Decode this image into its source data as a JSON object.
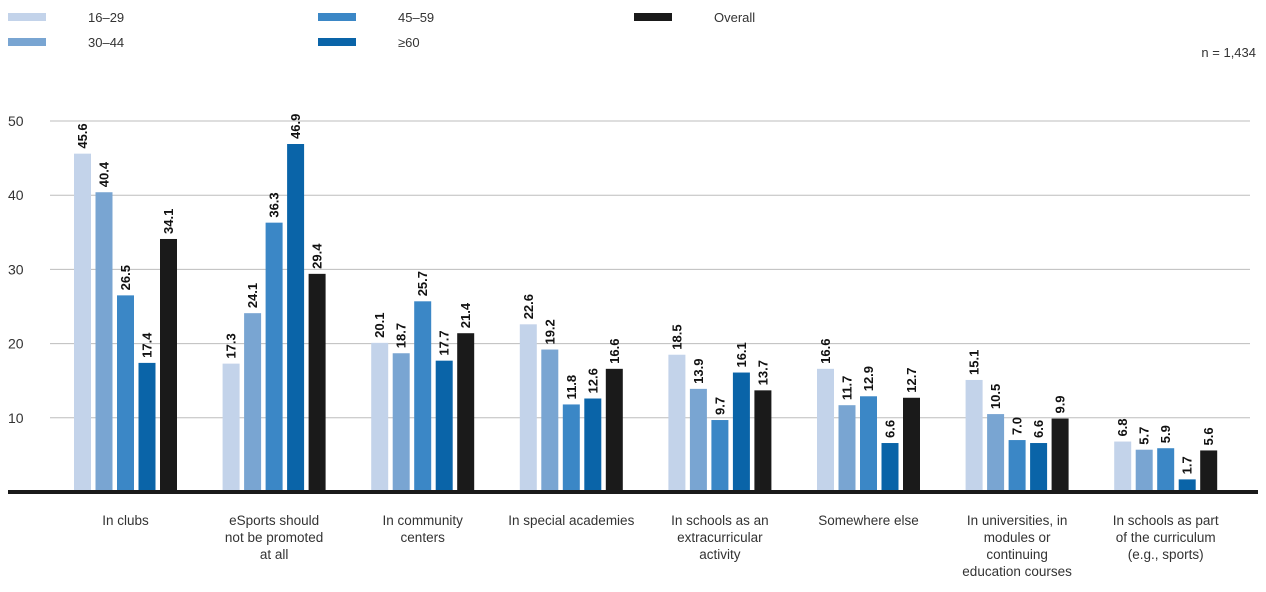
{
  "note": "n = 1,434",
  "chart_data": {
    "type": "bar",
    "title": "",
    "xlabel": "",
    "ylabel": "",
    "ylim": [
      0,
      50
    ],
    "yticks": [
      10,
      20,
      30,
      40,
      50
    ],
    "grid": true,
    "legend_position": "top-left",
    "categories": [
      [
        "In clubs"
      ],
      [
        "eSports should",
        "not be promoted",
        "at all"
      ],
      [
        "In community",
        "centers"
      ],
      [
        "In special academies"
      ],
      [
        "In schools as an",
        "extracurricular",
        "activity"
      ],
      [
        "Somewhere else"
      ],
      [
        "In universities, in",
        "modules or",
        "continuing",
        "education courses"
      ],
      [
        "In schools as part",
        "of the curriculum",
        "(e.g., sports)"
      ]
    ],
    "series": [
      {
        "name": "16–29",
        "color": "#c3d3ea",
        "values": [
          45.6,
          17.3,
          20.1,
          22.6,
          18.5,
          16.6,
          15.1,
          6.8
        ]
      },
      {
        "name": "30–44",
        "color": "#79a5d2",
        "values": [
          40.4,
          24.1,
          18.7,
          19.2,
          13.9,
          11.7,
          10.5,
          5.7
        ]
      },
      {
        "name": "45–59",
        "color": "#3b87c6",
        "values": [
          26.5,
          36.3,
          25.7,
          11.8,
          9.7,
          12.9,
          7.0,
          5.9
        ]
      },
      {
        "name": "≥60",
        "color": "#0a64a8",
        "values": [
          17.4,
          46.9,
          17.7,
          12.6,
          16.1,
          6.6,
          6.6,
          1.7
        ]
      },
      {
        "name": "Overall",
        "color": "#1a1a1a",
        "values": [
          34.1,
          29.4,
          21.4,
          16.6,
          13.7,
          12.7,
          9.9,
          5.6
        ]
      }
    ]
  }
}
